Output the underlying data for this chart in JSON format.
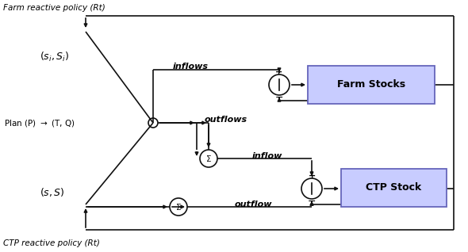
{
  "fig_width": 5.9,
  "fig_height": 3.18,
  "dpi": 100,
  "bg_color": "#ffffff",
  "box_fill": "#c8ccff",
  "box_edge": "#6666bb",
  "lc": "#111111",
  "lw": 1.2,
  "farm_policy": "Farm reactive policy (Rt)",
  "ctp_policy": "CTP reactive policy (Rt)",
  "farm_stocks": "Farm Stocks",
  "ctp_stock": "CTP Stock",
  "inflows": "inflows",
  "outflows": "outflows",
  "inflow": "inflow",
  "outflow": "outflow"
}
